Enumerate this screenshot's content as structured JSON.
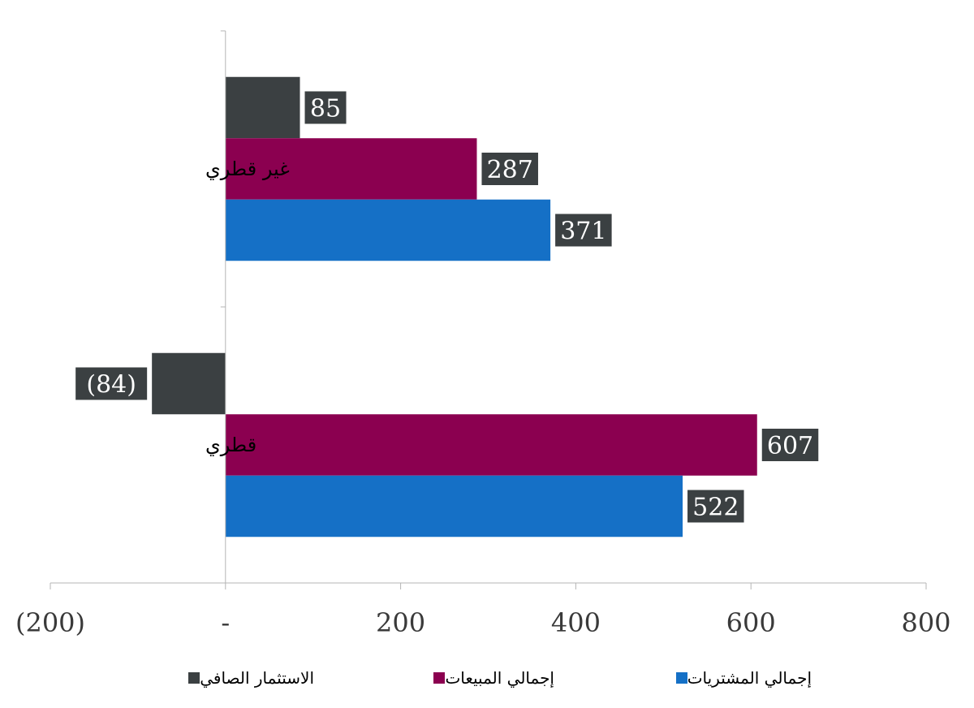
{
  "chart_data": {
    "type": "bar",
    "orientation": "horizontal",
    "categories": [
      "غير قطري",
      "قطري"
    ],
    "series": [
      {
        "name": "الاستثمار الصافي",
        "values": [
          85,
          -84
        ],
        "color": "#3b4042"
      },
      {
        "name": "إجمالي المبيعات",
        "values": [
          287,
          607
        ],
        "color": "#8b0050"
      },
      {
        "name": "إجمالي المشتريات",
        "values": [
          371,
          522
        ],
        "color": "#1570c6"
      }
    ],
    "data_labels": [
      [
        "85",
        "(84)"
      ],
      [
        "287",
        "607"
      ],
      [
        "371",
        "522"
      ]
    ],
    "x_ticks": [
      -200,
      0,
      200,
      400,
      600,
      800
    ],
    "x_tick_labels": [
      "(200)",
      "-",
      "200",
      "400",
      "600",
      "800"
    ],
    "xlim": [
      -200,
      800
    ],
    "grid": false,
    "legend_position": "bottom",
    "title": "",
    "xlabel": "",
    "ylabel": ""
  }
}
